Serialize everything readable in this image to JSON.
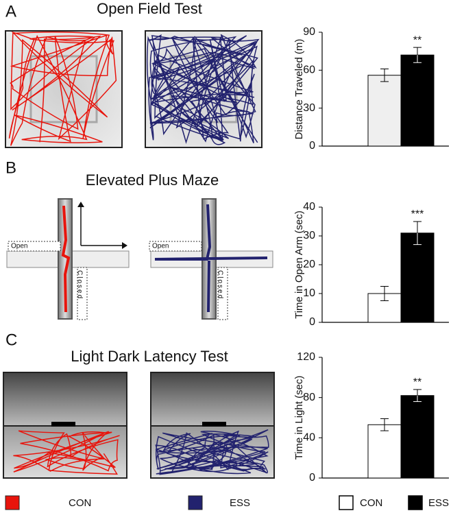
{
  "panels": [
    {
      "letter": "A",
      "title": "Open Field Test"
    },
    {
      "letter": "B",
      "title": "Elevated Plus Maze"
    },
    {
      "letter": "C",
      "title": "Light Dark Latency Test"
    }
  ],
  "maze_labels": {
    "open": "Open",
    "closed": "Closed"
  },
  "legend": [
    {
      "name": "CON",
      "color": "#e8140c"
    },
    {
      "name": "ESS",
      "color": "#22226e"
    }
  ],
  "chart_data": [
    {
      "type": "bar",
      "ylabel": "Distance Traveled (m)",
      "categories": [
        null
      ],
      "series": [
        {
          "name": "CON",
          "color": "#efefef",
          "values": [
            56
          ],
          "errors": [
            5
          ]
        },
        {
          "name": "ESS",
          "color": "#000000",
          "values": [
            72
          ],
          "errors": [
            6
          ]
        }
      ],
      "significance": "**",
      "ylim": [
        0,
        90
      ],
      "yticks": [
        0,
        30,
        60,
        90
      ]
    },
    {
      "type": "bar",
      "ylabel": "Time in Open Arm (sec)",
      "categories": [
        null
      ],
      "series": [
        {
          "name": "CON",
          "color": "#ffffff",
          "values": [
            10
          ],
          "errors": [
            2.5
          ]
        },
        {
          "name": "ESS",
          "color": "#000000",
          "values": [
            31
          ],
          "errors": [
            4
          ]
        }
      ],
      "significance": "***",
      "ylim": [
        0,
        40
      ],
      "yticks": [
        0,
        10,
        20,
        30,
        40
      ]
    },
    {
      "type": "bar",
      "ylabel": "Time in Light (sec)",
      "categories": [
        null
      ],
      "series": [
        {
          "name": "CON",
          "color": "#ffffff",
          "values": [
            53
          ],
          "errors": [
            6
          ]
        },
        {
          "name": "ESS",
          "color": "#000000",
          "values": [
            82
          ],
          "errors": [
            6
          ]
        }
      ],
      "significance": "**",
      "ylim": [
        0,
        120
      ],
      "yticks": [
        0,
        40,
        80,
        120
      ]
    }
  ]
}
